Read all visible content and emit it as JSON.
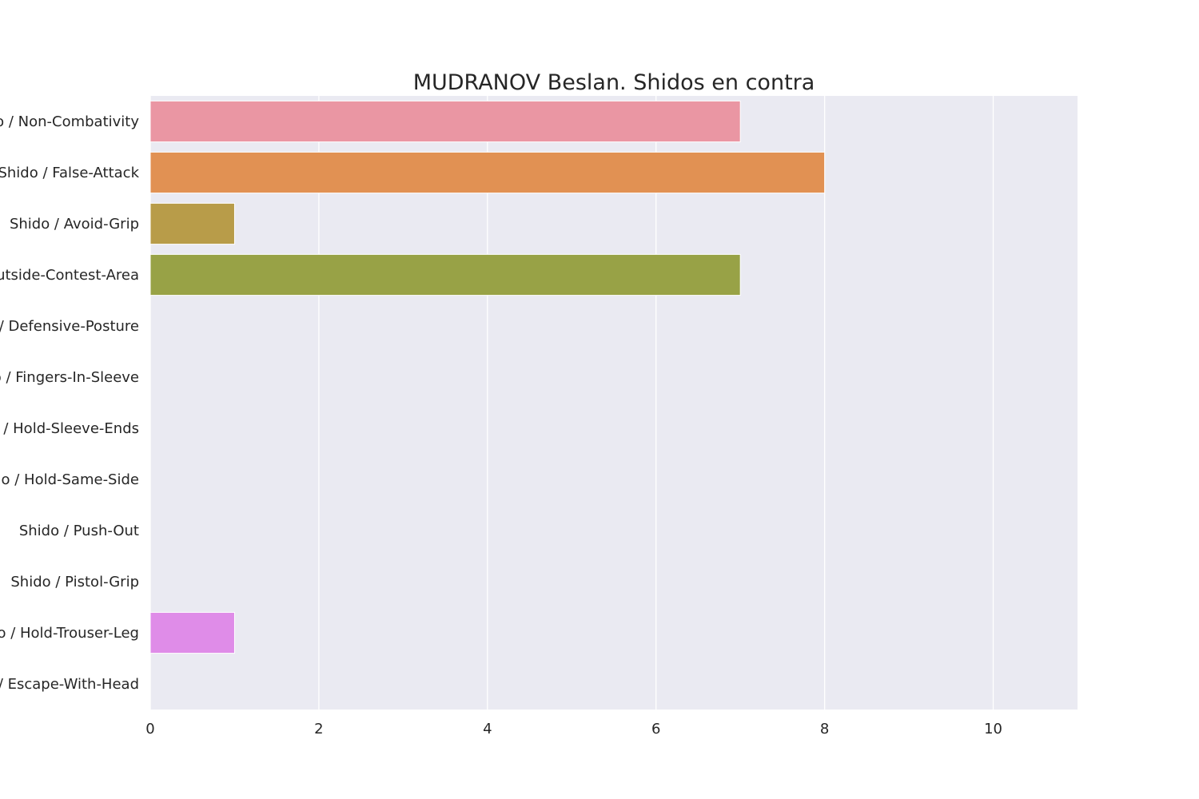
{
  "chart_data": {
    "type": "bar",
    "orientation": "horizontal",
    "title": "MUDRANOV Beslan. Shidos en contra",
    "xlabel": "",
    "ylabel": "",
    "categories": [
      "Shido / Non-Combativity",
      "Shido / False-Attack",
      "Shido / Avoid-Grip",
      "Shido / Outside-Contest-Area",
      "Shido / Defensive-Posture",
      "Shido / Fingers-In-Sleeve",
      "Shido / Hold-Sleeve-Ends",
      "Shido / Hold-Same-Side",
      "Shido / Push-Out",
      "Shido / Pistol-Grip",
      "Shido / Hold-Trouser-Leg",
      "Shido / Escape-With-Head"
    ],
    "values": [
      7,
      8,
      1,
      7,
      0,
      0,
      0,
      0,
      0,
      0,
      1,
      0
    ],
    "colors": [
      "#ea96a3",
      "#e19153",
      "#b89c49",
      "#98a246",
      "#5fad4c",
      "#4fb08b",
      "#52ad9f",
      "#54aab3",
      "#59a7cd",
      "#8d9ef0",
      "#df8ce8",
      "#f38bc5"
    ],
    "xlim": [
      0,
      11
    ],
    "xticks": [
      0,
      2,
      4,
      6,
      8,
      10
    ],
    "grid": true,
    "legend": "none",
    "plot_background": "#eaeaf2",
    "grid_color": "#ffffff"
  }
}
